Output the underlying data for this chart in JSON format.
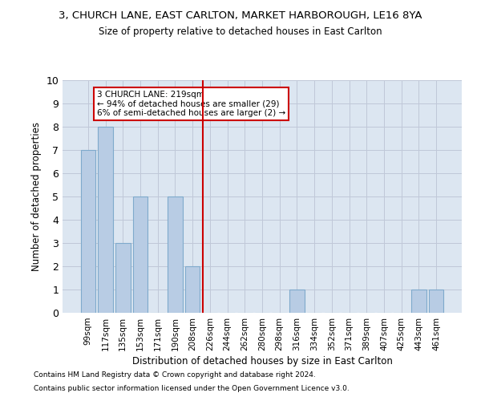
{
  "title": "3, CHURCH LANE, EAST CARLTON, MARKET HARBOROUGH, LE16 8YA",
  "subtitle": "Size of property relative to detached houses in East Carlton",
  "xlabel": "Distribution of detached houses by size in East Carlton",
  "ylabel": "Number of detached properties",
  "bar_labels": [
    "99sqm",
    "117sqm",
    "135sqm",
    "153sqm",
    "171sqm",
    "190sqm",
    "208sqm",
    "226sqm",
    "244sqm",
    "262sqm",
    "280sqm",
    "298sqm",
    "316sqm",
    "334sqm",
    "352sqm",
    "371sqm",
    "389sqm",
    "407sqm",
    "425sqm",
    "443sqm",
    "461sqm"
  ],
  "bar_values": [
    7,
    8,
    3,
    5,
    0,
    5,
    2,
    0,
    0,
    0,
    0,
    0,
    1,
    0,
    0,
    0,
    0,
    0,
    0,
    1,
    1
  ],
  "bar_color": "#b8cce4",
  "bar_edge_color": "#7faacc",
  "grid_color": "#c0c8d8",
  "bg_color": "#dce6f1",
  "vline_x_index": 7,
  "vline_color": "#cc0000",
  "annotation_text": "3 CHURCH LANE: 219sqm\n← 94% of detached houses are smaller (29)\n6% of semi-detached houses are larger (2) →",
  "annotation_box_color": "#cc0000",
  "ylim": [
    0,
    10
  ],
  "yticks": [
    0,
    1,
    2,
    3,
    4,
    5,
    6,
    7,
    8,
    9,
    10
  ],
  "footer_line1": "Contains HM Land Registry data © Crown copyright and database right 2024.",
  "footer_line2": "Contains public sector information licensed under the Open Government Licence v3.0."
}
